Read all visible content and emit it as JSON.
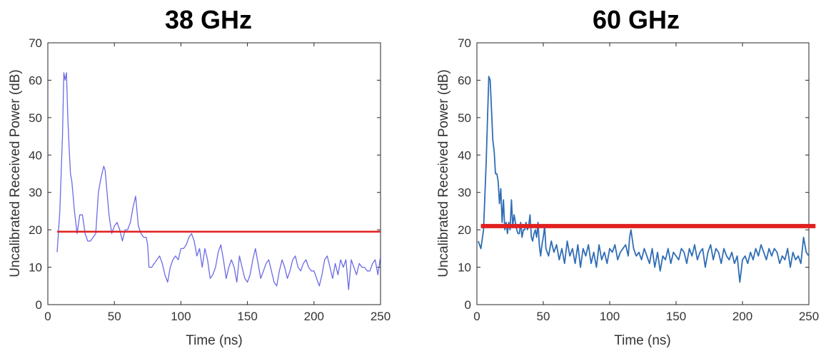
{
  "chart_data": [
    {
      "type": "line",
      "title": "38 GHz",
      "xlabel": "Time (ns)",
      "ylabel": "Uncalibrated Received Power (dB)",
      "xlim": [
        0,
        250
      ],
      "ylim": [
        0,
        70
      ],
      "xticks": [
        0,
        50,
        100,
        150,
        200,
        250
      ],
      "yticks": [
        0,
        10,
        20,
        30,
        40,
        50,
        60,
        70
      ],
      "grid": false,
      "series": [
        {
          "color": "#6b6be6",
          "x": [
            7,
            9,
            11,
            12,
            13,
            14,
            15,
            16,
            17,
            18,
            20,
            22,
            24,
            26,
            28,
            30,
            32,
            34,
            36,
            38,
            40,
            42,
            43,
            44,
            46,
            48,
            50,
            52,
            54,
            56,
            58,
            60,
            62,
            64,
            66,
            68,
            70,
            72,
            74,
            75,
            76,
            78,
            80,
            82,
            84,
            86,
            88,
            90,
            92,
            94,
            96,
            98,
            100,
            102,
            104,
            106,
            108,
            110,
            112,
            114,
            116,
            118,
            120,
            122,
            124,
            126,
            128,
            130,
            132,
            134,
            136,
            138,
            140,
            142,
            144,
            146,
            148,
            150,
            152,
            154,
            156,
            158,
            160,
            162,
            164,
            166,
            168,
            170,
            172,
            174,
            176,
            178,
            180,
            182,
            184,
            186,
            188,
            190,
            192,
            194,
            196,
            198,
            200,
            202,
            204,
            206,
            208,
            210,
            212,
            214,
            216,
            218,
            220,
            222,
            224,
            226,
            228,
            230,
            232,
            234,
            236,
            238,
            240,
            242,
            244,
            246,
            248,
            250
          ],
          "y": [
            14,
            25,
            45,
            62,
            60,
            62,
            50,
            42,
            35,
            33,
            25,
            19,
            24,
            24,
            19,
            17,
            17,
            18,
            19,
            30,
            34,
            37,
            36,
            32,
            24,
            19,
            21,
            22,
            20,
            17,
            20,
            20,
            22,
            26,
            29,
            21,
            19,
            18,
            18,
            16,
            10,
            10,
            11,
            12,
            13,
            11,
            8,
            6,
            10,
            12,
            13,
            12,
            15,
            15,
            16,
            18,
            19,
            17,
            13,
            15,
            10,
            15,
            12,
            7,
            8,
            10,
            14,
            16,
            12,
            7,
            10,
            12,
            10,
            6,
            13,
            10,
            7,
            6,
            8,
            12,
            15,
            11,
            7,
            9,
            11,
            12,
            9,
            6,
            5,
            9,
            12,
            10,
            7,
            9,
            12,
            13,
            10,
            9,
            11,
            12,
            10,
            9,
            9,
            7,
            5,
            8,
            12,
            13,
            10,
            7,
            11,
            8,
            12,
            10,
            12,
            4,
            12,
            10,
            8,
            11,
            10,
            10,
            9,
            9,
            11,
            12,
            8,
            13
          ]
        }
      ],
      "threshold": {
        "y": 19.5,
        "x_start": 7,
        "x_end": 250,
        "color": "#e02020"
      }
    },
    {
      "type": "line",
      "title": "60 GHz",
      "xlabel": "Time (ns)",
      "ylabel": "Uncalibrated Received Power (dB)",
      "xlim": [
        0,
        250
      ],
      "ylim": [
        0,
        70
      ],
      "xticks": [
        0,
        50,
        100,
        150,
        200,
        250
      ],
      "yticks": [
        0,
        10,
        20,
        30,
        40,
        50,
        60,
        70
      ],
      "grid": false,
      "series": [
        {
          "color": "#2f6db5",
          "x": [
            1,
            3,
            5,
            7,
            8,
            9,
            10,
            11,
            12,
            13,
            14,
            15,
            16,
            17,
            18,
            19,
            20,
            21,
            22,
            23,
            24,
            25,
            26,
            27,
            28,
            29,
            30,
            31,
            32,
            33,
            34,
            35,
            36,
            37,
            38,
            39,
            40,
            41,
            42,
            43,
            44,
            45,
            46,
            47,
            48,
            49,
            50,
            51,
            52,
            54,
            56,
            58,
            60,
            62,
            64,
            66,
            68,
            70,
            72,
            74,
            76,
            78,
            80,
            82,
            84,
            86,
            88,
            90,
            92,
            94,
            96,
            98,
            100,
            102,
            104,
            106,
            108,
            110,
            112,
            114,
            115,
            116,
            118,
            120,
            122,
            124,
            126,
            128,
            130,
            132,
            134,
            136,
            138,
            140,
            142,
            144,
            146,
            148,
            150,
            152,
            154,
            156,
            158,
            160,
            162,
            164,
            166,
            168,
            170,
            172,
            174,
            176,
            178,
            180,
            182,
            184,
            186,
            188,
            190,
            192,
            194,
            196,
            198,
            200,
            202,
            204,
            206,
            208,
            210,
            212,
            214,
            216,
            218,
            220,
            222,
            224,
            226,
            228,
            230,
            232,
            234,
            236,
            238,
            240,
            242,
            244,
            246,
            248,
            250
          ],
          "y": [
            17,
            15,
            20,
            38,
            50,
            61,
            60,
            52,
            44,
            41,
            35,
            35,
            33,
            27,
            31,
            22,
            28,
            20,
            22,
            19,
            22,
            20,
            28,
            21,
            24,
            22,
            20,
            19,
            19,
            22,
            18,
            20,
            20,
            22,
            20,
            21,
            24,
            18,
            17,
            19,
            20,
            18,
            22,
            16,
            13,
            16,
            18,
            21,
            15,
            13,
            17,
            14,
            16,
            12,
            15,
            11,
            17,
            13,
            15,
            11,
            16,
            10,
            15,
            13,
            16,
            11,
            14,
            10,
            16,
            12,
            14,
            11,
            15,
            14,
            16,
            12,
            14,
            15,
            16,
            13,
            18,
            20,
            15,
            13,
            14,
            12,
            15,
            13,
            11,
            15,
            10,
            14,
            9,
            13,
            12,
            15,
            11,
            14,
            13,
            12,
            15,
            14,
            11,
            15,
            13,
            16,
            12,
            14,
            15,
            10,
            14,
            16,
            12,
            15,
            14,
            11,
            15,
            13,
            12,
            14,
            11,
            13,
            6,
            12,
            13,
            11,
            14,
            12,
            15,
            13,
            16,
            14,
            12,
            15,
            13,
            15,
            14,
            11,
            13,
            12,
            15,
            10,
            14,
            12,
            13,
            11,
            18,
            14,
            13
          ]
        }
      ],
      "threshold": {
        "y": 21,
        "x_start": 3,
        "x_end": 255,
        "color": "#e02020"
      }
    }
  ]
}
